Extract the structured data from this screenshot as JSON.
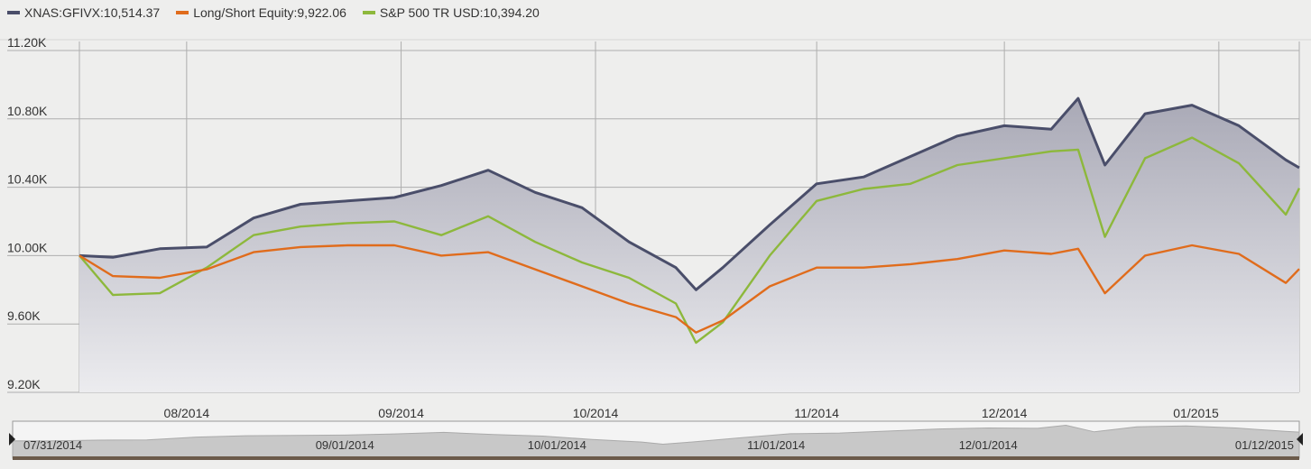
{
  "legend": [
    {
      "label": "XNAS:GFIVX:10,514.37",
      "color": "#4a4e6a"
    },
    {
      "label": "Long/Short Equity:9,922.06",
      "color": "#e06c1c"
    },
    {
      "label": "S&P 500 TR USD:10,394.20",
      "color": "#8db83c"
    }
  ],
  "colors": {
    "background": "#eeeeed",
    "grid": "#aeaeae",
    "area_top": "#a9a9b6",
    "area_bottom": "#ececef",
    "navigator_fill": "#c8c8c8"
  },
  "chart_data": {
    "type": "line",
    "ylim": [
      9200,
      11200
    ],
    "yticks": [
      "9.20K",
      "9.60K",
      "10.00K",
      "10.40K",
      "10.80K",
      "11.20K"
    ],
    "ytick_values": [
      9200,
      9600,
      10000,
      10400,
      10800,
      11200
    ],
    "x_tick_labels": [
      "08/2014",
      "09/2014",
      "10/2014",
      "11/2014",
      "12/2014",
      "01/2015"
    ],
    "x_tick_dates": [
      "2014-08-01",
      "2014-09-02",
      "2014-10-01",
      "2014-11-03",
      "2014-12-01",
      "2015-01-02"
    ],
    "grid": true,
    "legend_position": "top-left",
    "x": [
      "2014-07-16",
      "2014-07-21",
      "2014-07-28",
      "2014-08-04",
      "2014-08-11",
      "2014-08-18",
      "2014-08-25",
      "2014-09-01",
      "2014-09-08",
      "2014-09-15",
      "2014-09-22",
      "2014-09-29",
      "2014-10-06",
      "2014-10-13",
      "2014-10-16",
      "2014-10-20",
      "2014-10-27",
      "2014-11-03",
      "2014-11-10",
      "2014-11-17",
      "2014-11-24",
      "2014-12-01",
      "2014-12-08",
      "2014-12-12",
      "2014-12-16",
      "2014-12-22",
      "2014-12-29",
      "2015-01-05",
      "2015-01-12",
      "2015-01-14"
    ],
    "series": [
      {
        "name": "XNAS:GFIVX",
        "color": "#4a4e6a",
        "filled": true,
        "values": [
          10000,
          9990,
          10040,
          10050,
          10220,
          10300,
          10320,
          10340,
          10410,
          10500,
          10370,
          10280,
          10080,
          9930,
          9800,
          9930,
          10180,
          10420,
          10460,
          10580,
          10700,
          10760,
          10740,
          10920,
          10530,
          10830,
          10880,
          10760,
          10560,
          10514
        ]
      },
      {
        "name": "Long/Short Equity",
        "color": "#e06c1c",
        "values": [
          10000,
          9880,
          9870,
          9920,
          10020,
          10050,
          10060,
          10060,
          10000,
          10020,
          9920,
          9820,
          9720,
          9640,
          9550,
          9620,
          9820,
          9930,
          9930,
          9950,
          9980,
          10030,
          10010,
          10040,
          9780,
          10000,
          10060,
          10010,
          9840,
          9922
        ]
      },
      {
        "name": "S&P 500 TR USD",
        "color": "#8db83c",
        "values": [
          10000,
          9770,
          9780,
          9930,
          10120,
          10170,
          10190,
          10200,
          10120,
          10230,
          10080,
          9960,
          9870,
          9720,
          9490,
          9610,
          10000,
          10320,
          10390,
          10420,
          10530,
          10570,
          10610,
          10620,
          10110,
          10570,
          10690,
          10540,
          10240,
          10394
        ]
      }
    ],
    "navigator_labels": [
      "07/31/2014",
      "09/01/2014",
      "10/01/2014",
      "11/01/2014",
      "12/01/2014",
      "01/12/2015"
    ],
    "navigator_dates": [
      "2014-07-31",
      "2014-09-01",
      "2014-10-01",
      "2014-11-01",
      "2014-12-01",
      "2015-01-12"
    ]
  }
}
